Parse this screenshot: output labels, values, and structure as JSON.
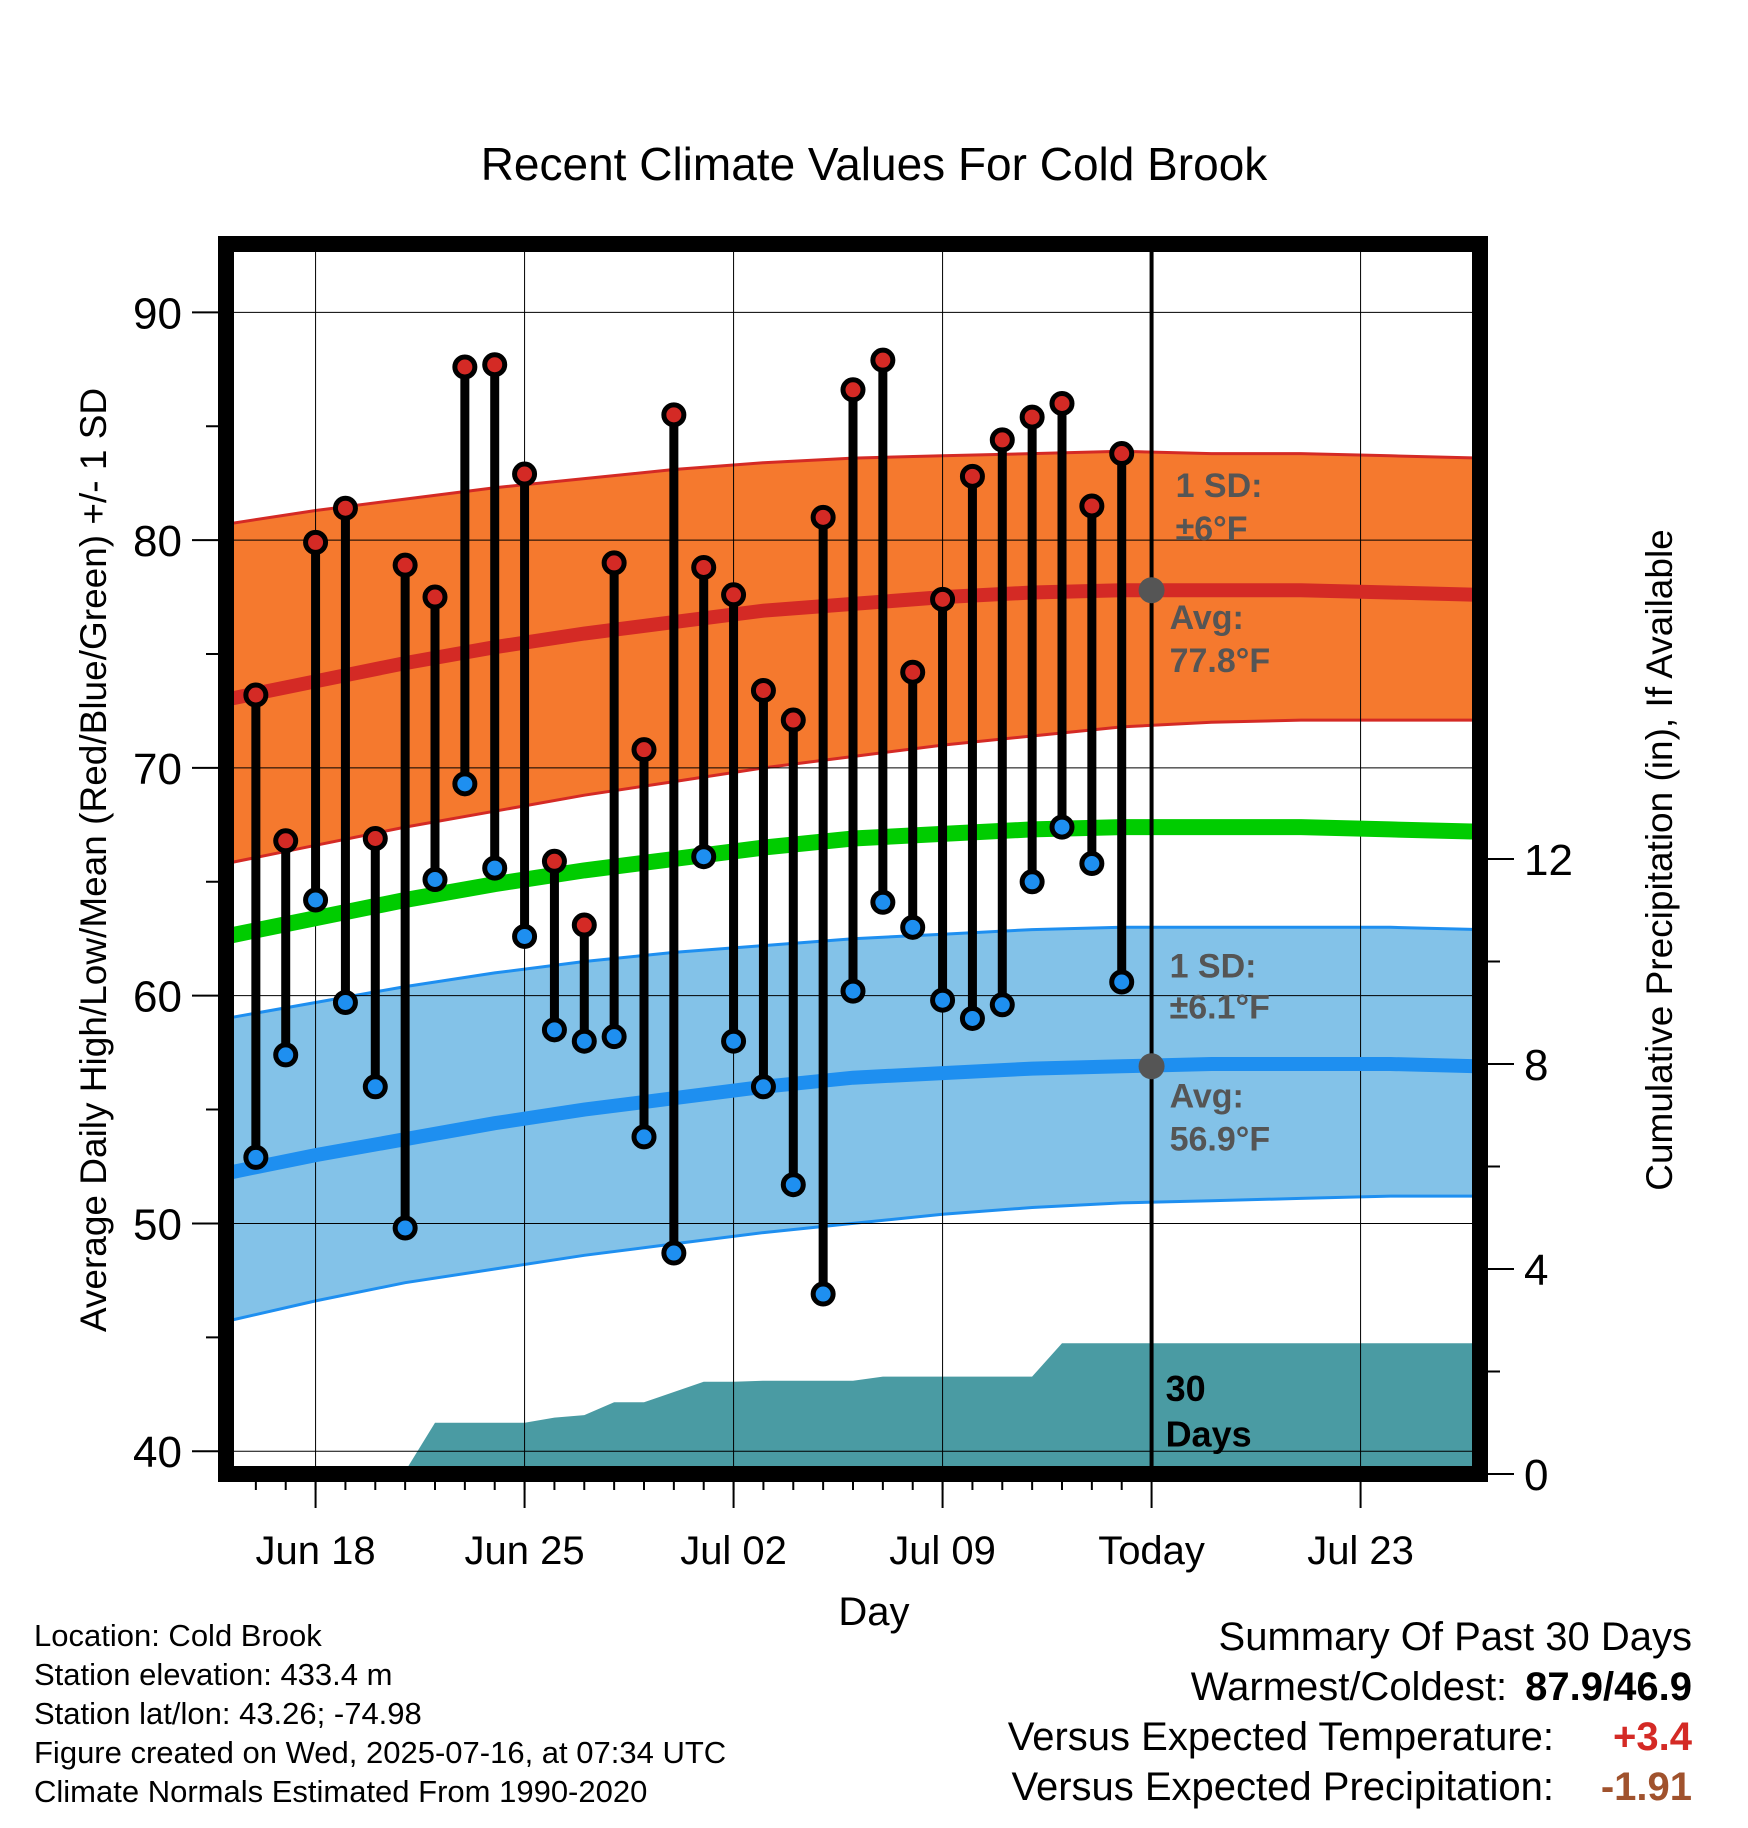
{
  "chart_data": {
    "type": "line",
    "title": "Recent Climate Values For Cold Brook",
    "xlabel": "Day",
    "ylabel": "Average Daily High/Low/Mean (Red/Blue/Green) +/- 1 SD",
    "y2label": "Cumulative Precipitation (in), If Available",
    "ylim": [
      39,
      93
    ],
    "y2lim": [
      0,
      24
    ],
    "xlim": [
      "2025-06-15",
      "2025-07-27"
    ],
    "y_ticks": [
      "40",
      "50",
      "60",
      "70",
      "80",
      "90"
    ],
    "y2_ticks": [
      "0",
      "4",
      "8",
      "12"
    ],
    "x_ticks": [
      {
        "date": "2025-06-18",
        "label": "Jun 18"
      },
      {
        "date": "2025-06-25",
        "label": "Jun 25"
      },
      {
        "date": "2025-07-02",
        "label": "Jul 02"
      },
      {
        "date": "2025-07-09",
        "label": "Jul 09"
      },
      {
        "date": "2025-07-16",
        "label": "Today"
      },
      {
        "date": "2025-07-23",
        "label": "Jul 23"
      }
    ],
    "grid": true,
    "days": [
      "2025-06-16",
      "2025-06-17",
      "2025-06-18",
      "2025-06-19",
      "2025-06-20",
      "2025-06-21",
      "2025-06-22",
      "2025-06-23",
      "2025-06-24",
      "2025-06-25",
      "2025-06-26",
      "2025-06-27",
      "2025-06-28",
      "2025-06-29",
      "2025-06-30",
      "2025-07-01",
      "2025-07-02",
      "2025-07-03",
      "2025-07-04",
      "2025-07-05",
      "2025-07-06",
      "2025-07-07",
      "2025-07-08",
      "2025-07-09",
      "2025-07-10",
      "2025-07-11",
      "2025-07-12",
      "2025-07-13",
      "2025-07-14",
      "2025-07-15"
    ],
    "daily_high": [
      73.2,
      66.8,
      79.9,
      81.4,
      66.9,
      78.9,
      77.5,
      87.6,
      87.7,
      82.9,
      65.9,
      63.1,
      79.0,
      70.8,
      85.5,
      78.8,
      77.6,
      73.4,
      72.1,
      81.0,
      86.6,
      87.9,
      74.2,
      77.4,
      82.8,
      84.4,
      85.4,
      86.0,
      81.5,
      83.8
    ],
    "daily_low": [
      52.9,
      57.4,
      64.2,
      59.7,
      56.0,
      49.8,
      65.1,
      69.3,
      65.6,
      62.6,
      58.5,
      58.0,
      58.2,
      53.8,
      48.7,
      66.1,
      58.0,
      56.0,
      51.7,
      46.9,
      60.2,
      64.1,
      63.0,
      59.8,
      59.0,
      59.6,
      65.0,
      67.4,
      65.8,
      60.6
    ],
    "normals": {
      "dates": [
        "2025-06-15",
        "2025-06-18",
        "2025-06-21",
        "2025-06-24",
        "2025-06-27",
        "2025-06-30",
        "2025-07-03",
        "2025-07-06",
        "2025-07-09",
        "2025-07-12",
        "2025-07-15",
        "2025-07-18",
        "2025-07-21",
        "2025-07-24",
        "2025-07-27"
      ],
      "high_avg": [
        73.0,
        73.8,
        74.6,
        75.3,
        75.9,
        76.4,
        76.9,
        77.2,
        77.5,
        77.7,
        77.8,
        77.8,
        77.8,
        77.7,
        77.6
      ],
      "high_plus_sd": [
        80.7,
        81.3,
        81.8,
        82.3,
        82.7,
        83.1,
        83.4,
        83.6,
        83.7,
        83.8,
        83.9,
        83.8,
        83.8,
        83.7,
        83.6
      ],
      "high_minus_sd": [
        65.8,
        66.6,
        67.4,
        68.1,
        68.8,
        69.4,
        70.0,
        70.5,
        71.0,
        71.4,
        71.8,
        72.0,
        72.1,
        72.1,
        72.1
      ],
      "mean": [
        62.6,
        63.4,
        64.2,
        64.9,
        65.5,
        66.0,
        66.5,
        66.9,
        67.1,
        67.3,
        67.4,
        67.4,
        67.4,
        67.3,
        67.2
      ],
      "low_avg": [
        52.2,
        53.0,
        53.7,
        54.4,
        55.0,
        55.5,
        56.0,
        56.4,
        56.6,
        56.8,
        56.9,
        57.0,
        57.0,
        57.0,
        56.9
      ],
      "low_plus_sd": [
        59.0,
        59.7,
        60.4,
        61.0,
        61.5,
        61.9,
        62.2,
        62.5,
        62.7,
        62.9,
        63.0,
        63.0,
        63.0,
        63.0,
        62.9
      ],
      "low_minus_sd": [
        45.7,
        46.6,
        47.4,
        48.0,
        48.6,
        49.1,
        49.6,
        50.0,
        50.4,
        50.7,
        50.9,
        51.0,
        51.1,
        51.2,
        51.2
      ]
    },
    "precip_cumulative": {
      "dates": [
        "2025-06-15",
        "2025-06-18",
        "2025-06-19",
        "2025-06-20",
        "2025-06-21",
        "2025-06-22",
        "2025-06-25",
        "2025-06-26",
        "2025-06-27",
        "2025-06-28",
        "2025-06-29",
        "2025-06-30",
        "2025-07-01",
        "2025-07-02",
        "2025-07-03",
        "2025-07-06",
        "2025-07-07",
        "2025-07-12",
        "2025-07-13",
        "2025-07-16",
        "2025-07-27"
      ],
      "values": [
        0.0,
        0.0,
        0.02,
        0.05,
        0.05,
        1.0,
        1.0,
        1.1,
        1.15,
        1.4,
        1.4,
        1.6,
        1.8,
        1.8,
        1.82,
        1.82,
        1.9,
        1.9,
        2.55,
        2.55,
        2.55
      ]
    },
    "annotations": {
      "high_sd_title": "1 SD:",
      "high_sd_value": "±6°F",
      "high_avg_title": "Avg:",
      "high_avg_value": "77.8°F",
      "low_sd_title": "1 SD:",
      "low_sd_value": "±6.1°F",
      "low_avg_title": "Avg:",
      "low_avg_value": "56.9°F",
      "precip_days_1": "30",
      "precip_days_2": "Days"
    },
    "colors": {
      "high_band": "#f5792e",
      "high_line": "#d42a25",
      "low_band": "#83c2e8",
      "low_line": "#1e8ff0",
      "mean_line": "#00cc00",
      "precip_fill": "#4a9ba3",
      "high_marker": "#d42a25",
      "low_marker": "#1e8ff0",
      "annotation_text": "#555555",
      "today_marker": "#555555"
    }
  },
  "info": {
    "location": "Location: Cold Brook",
    "elevation": "Station elevation: 433.4 m",
    "latlon": "Station lat/lon: 43.26; -74.98",
    "created": "Figure created on Wed, 2025-07-16, at 07:34 UTC",
    "normals": "Climate Normals Estimated From 1990-2020"
  },
  "summary": {
    "title": "Summary Of Past 30 Days",
    "warmest_label": "Warmest/Coldest:",
    "warmest_value": "87.9/46.9",
    "temp_label": "Versus Expected Temperature:",
    "temp_value": "+3.4",
    "temp_color": "#d42a25",
    "precip_label": "Versus Expected Precipitation:",
    "precip_value": "-1.91",
    "precip_color": "#a0522d"
  }
}
